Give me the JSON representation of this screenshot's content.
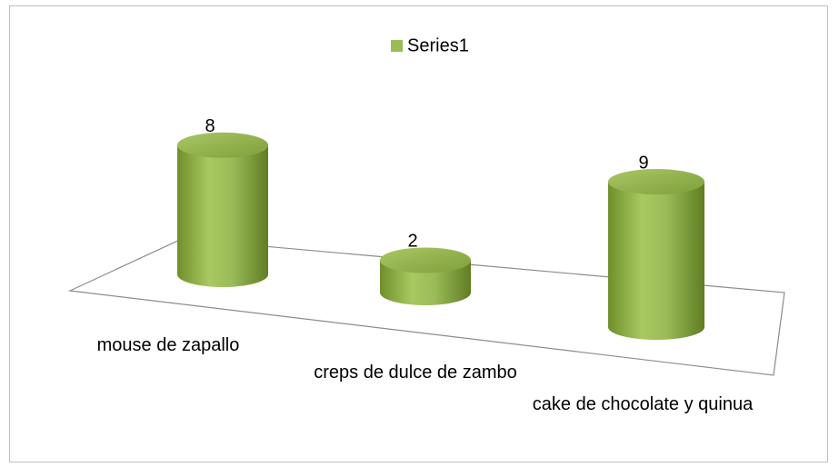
{
  "chart_data": {
    "type": "bar",
    "categories": [
      "mouse de zapallo",
      "creps de dulce de zambo",
      "cake de chocolate y quinua"
    ],
    "series": [
      {
        "name": "Series1",
        "color": "#9bbb59",
        "values": [
          8,
          2,
          9
        ]
      }
    ]
  }
}
